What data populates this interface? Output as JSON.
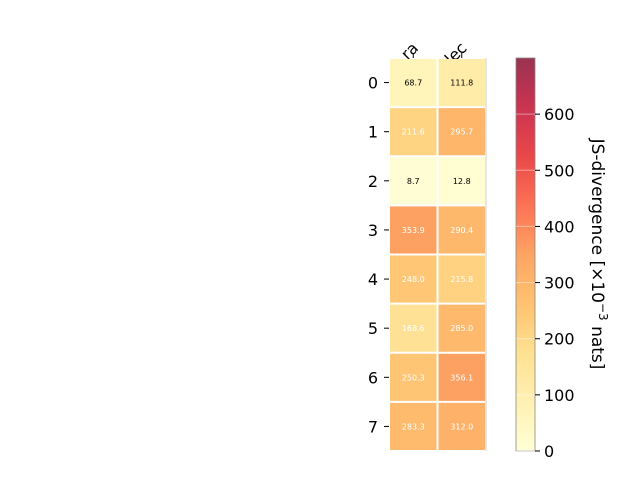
{
  "chart_data": {
    "type": "heatmap",
    "columns": [
      "ra",
      "dec"
    ],
    "rows": [
      "0",
      "1",
      "2",
      "3",
      "4",
      "5",
      "6",
      "7"
    ],
    "values": [
      [
        68.7,
        111.8
      ],
      [
        211.6,
        295.7
      ],
      [
        8.7,
        12.8
      ],
      [
        353.9,
        290.4
      ],
      [
        248.0,
        215.8
      ],
      [
        168.6,
        285.0
      ],
      [
        250.3,
        356.1
      ],
      [
        283.3,
        312.0
      ]
    ],
    "value_labels": [
      [
        "68.7",
        "111.8"
      ],
      [
        "211.6",
        "295.7"
      ],
      [
        "8.7",
        "12.8"
      ],
      [
        "353.9",
        "290.4"
      ],
      [
        "248.0",
        "215.8"
      ],
      [
        "168.6",
        "285.0"
      ],
      [
        "250.3",
        "356.1"
      ],
      [
        "283.3",
        "312.0"
      ]
    ],
    "colorbar": {
      "label_prefix": "JS-divergence [×10",
      "label_exponent": "−3",
      "label_suffix": " nats]",
      "range": [
        0,
        700
      ],
      "ticks": [
        "0",
        "100",
        "200",
        "300",
        "400",
        "500",
        "600"
      ],
      "colormap": "YlOrRd"
    }
  }
}
